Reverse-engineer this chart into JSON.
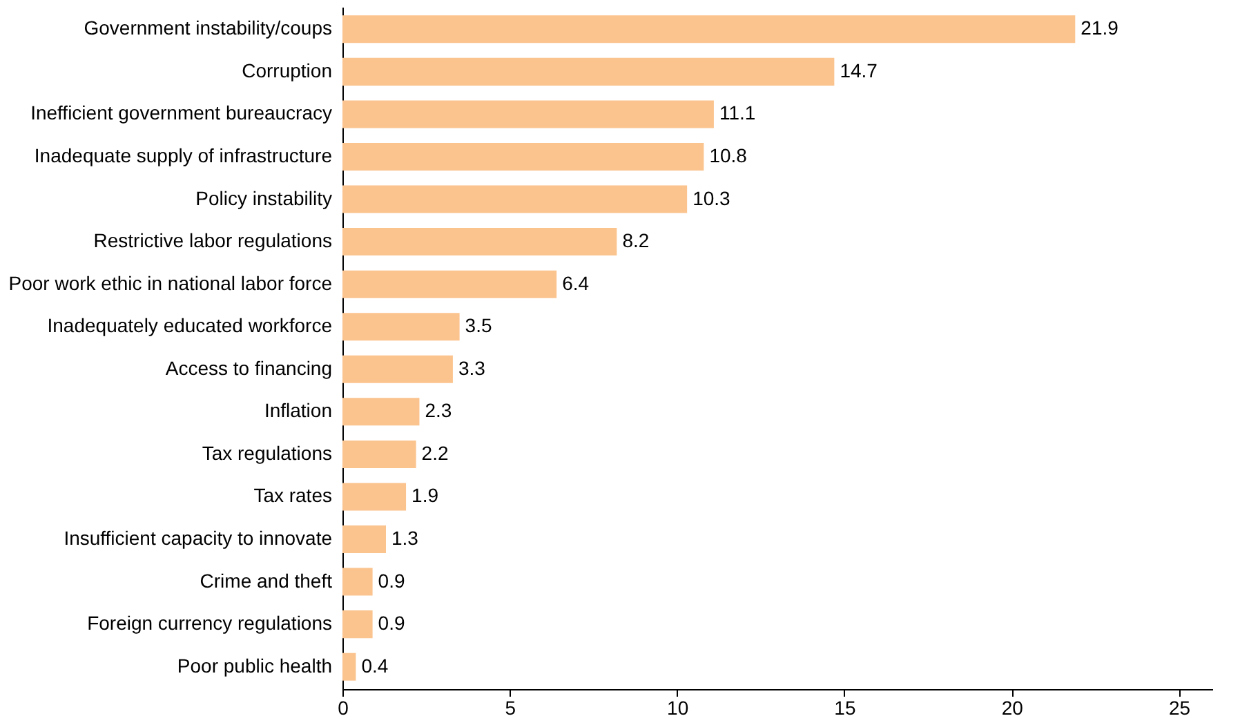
{
  "chart_data": {
    "type": "bar",
    "orientation": "horizontal",
    "categories": [
      "Government instability/coups",
      "Corruption",
      "Inefficient government bureaucracy",
      "Inadequate supply of infrastructure",
      "Policy instability",
      "Restrictive labor regulations",
      "Poor work ethic in national labor force",
      "Inadequately educated workforce",
      "Access to financing",
      "Inflation",
      "Tax regulations",
      "Tax rates",
      "Insufficient capacity to innovate",
      "Crime and theft",
      "Foreign currency regulations",
      "Poor public health"
    ],
    "values": [
      21.9,
      14.7,
      11.1,
      10.8,
      10.3,
      8.2,
      6.4,
      3.5,
      3.3,
      2.3,
      2.2,
      1.9,
      1.3,
      0.9,
      0.9,
      0.4
    ],
    "color": "#fbc48f",
    "xlim": [
      0,
      26
    ],
    "xticks": [
      0,
      5,
      10,
      15,
      20,
      25
    ],
    "grid": false,
    "data_labels": true
  }
}
